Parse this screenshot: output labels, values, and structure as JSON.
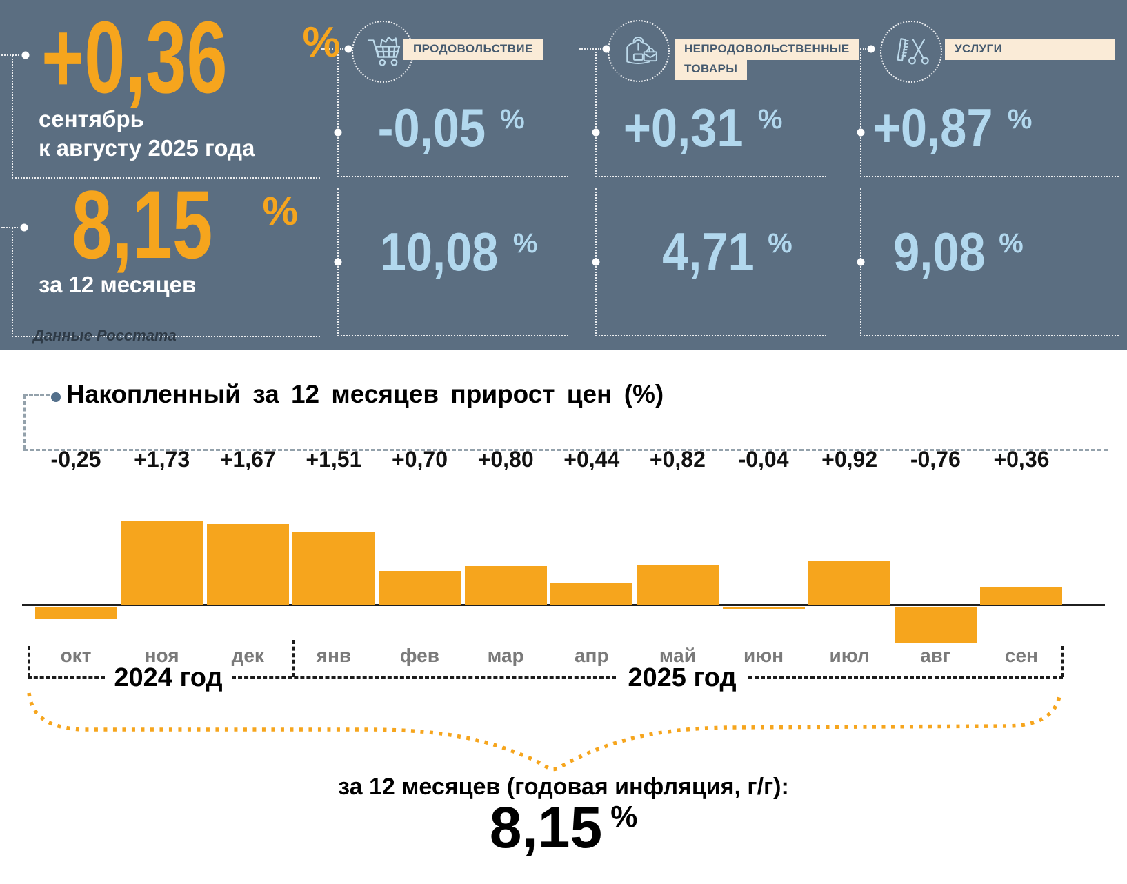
{
  "units": {
    "percent": "%"
  },
  "colors": {
    "header_bg": "#5B6E81",
    "accent_orange": "#F6A51D",
    "value_blue": "#B2D8EE",
    "chip_bg": "#FAEBD7",
    "chip_text": "#44596E",
    "icon_stroke": "#BCD9EA"
  },
  "header": {
    "main": {
      "monthly_value": "+0,36",
      "caption_line1": "сентябрь",
      "caption_line2": "к августу 2025 года",
      "annual_value": "8,15",
      "annual_caption": "за 12 месяцев",
      "source_note": "Данные Росстата"
    },
    "categories": [
      {
        "name": "food",
        "icon": "cart-icon",
        "label": "ПРОДОВОЛЬСТВИЕ",
        "monthly": "-0,05",
        "annual": "10,08"
      },
      {
        "name": "non-food",
        "icon": "clothes-bag-icon",
        "label": "НЕПРОДОВОЛЬСТВЕННЫЕ",
        "label2": "ТОВАРЫ",
        "monthly": "+0,31",
        "annual": "4,71"
      },
      {
        "name": "services",
        "icon": "scissors-comb-icon",
        "label": "УСЛУГИ",
        "monthly": "+0,87",
        "annual": "9,08"
      }
    ]
  },
  "chart": {
    "years": [
      {
        "label": "2024 год",
        "months": [
          "окт",
          "ноя",
          "дек"
        ]
      },
      {
        "label": "2025 год",
        "months": [
          "янв",
          "фев",
          "мар",
          "апр",
          "май",
          "июн",
          "июл",
          "авг",
          "сен"
        ]
      }
    ]
  },
  "chart_data": {
    "type": "bar",
    "title": "Накопленный за 12 месяцев прирост цен (%)",
    "categories": [
      "окт",
      "ноя",
      "дек",
      "янв",
      "фев",
      "мар",
      "апр",
      "май",
      "июн",
      "июл",
      "авг",
      "сен"
    ],
    "values": [
      -0.25,
      1.73,
      1.67,
      1.51,
      0.7,
      0.8,
      0.44,
      0.82,
      -0.04,
      0.92,
      -0.76,
      0.36
    ],
    "value_labels": [
      "-0,25",
      "+1,73",
      "+1,67",
      "+1,51",
      "+0,70",
      "+0,80",
      "+0,44",
      "+0,82",
      "-0,04",
      "+0,92",
      "-0,76",
      "+0,36"
    ],
    "xlabel": "",
    "ylabel": "",
    "ylim": [
      -1.0,
      2.0
    ],
    "grid": false,
    "legend": "none",
    "bar_color": "#F6A51D",
    "baseline": 0
  },
  "footer": {
    "caption": "за 12 месяцев (годовая инфляция, г/г):",
    "value": "8,15"
  }
}
